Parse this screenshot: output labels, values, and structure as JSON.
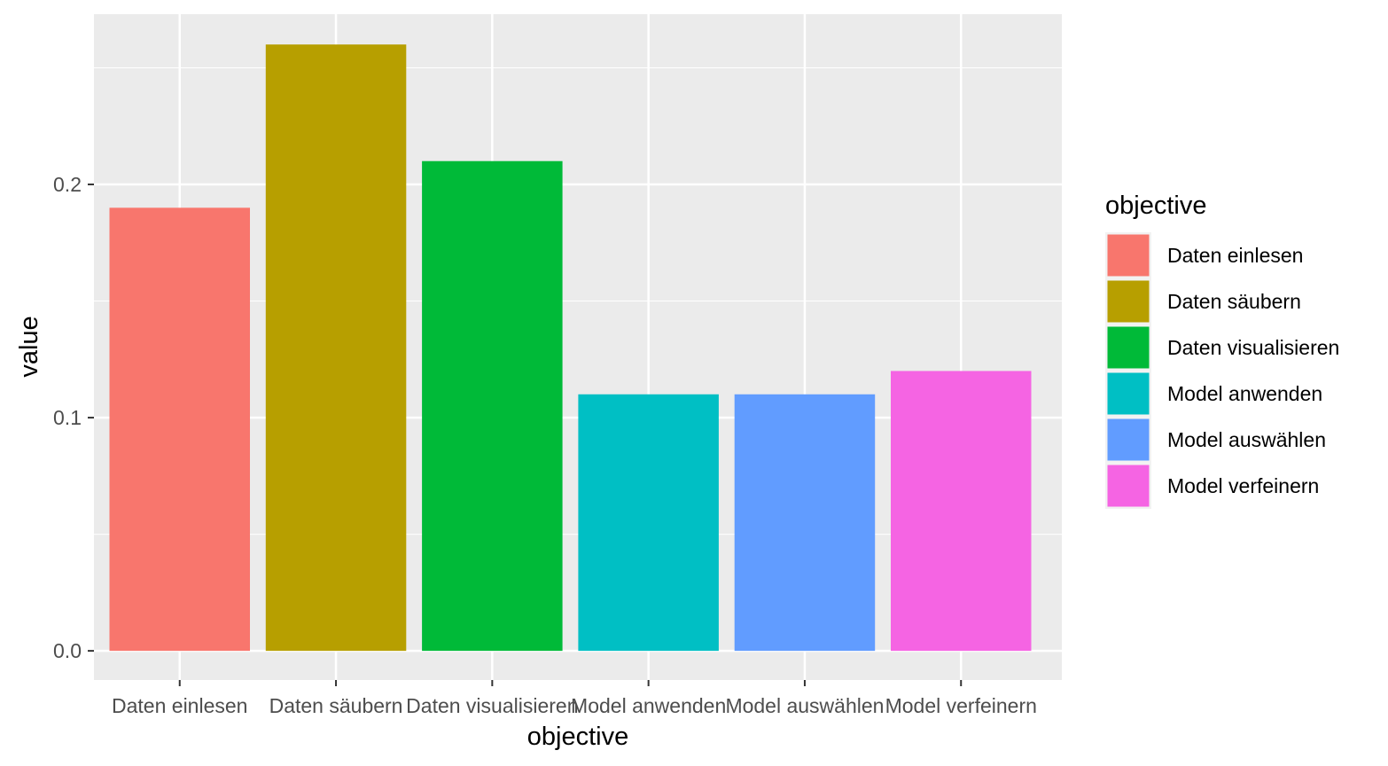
{
  "chart_data": {
    "type": "bar",
    "categories": [
      "Daten einlesen",
      "Daten säubern",
      "Daten visualisieren",
      "Model anwenden",
      "Model auswählen",
      "Model verfeinern"
    ],
    "values": [
      0.19,
      0.26,
      0.21,
      0.11,
      0.11,
      0.12
    ],
    "colors": [
      "#F8766D",
      "#B79F00",
      "#00BA38",
      "#00BFC4",
      "#619CFF",
      "#F564E3"
    ],
    "xlabel": "objective",
    "ylabel": "value",
    "ylim": [
      -0.0125,
      0.273
    ],
    "yticks": [
      0.0,
      0.1,
      0.2
    ],
    "ytick_labels": [
      "0.0",
      "0.1",
      "0.2"
    ],
    "ygrid_minor": [
      0.05,
      0.15,
      0.25
    ],
    "panel_background": "#EBEBEB",
    "grid_color": "#FFFFFF",
    "legend": {
      "title": "objective",
      "placement": "right",
      "entries": [
        "Daten einlesen",
        "Daten säubern",
        "Daten visualisieren",
        "Model anwenden",
        "Model auswählen",
        "Model verfeinern"
      ]
    }
  }
}
